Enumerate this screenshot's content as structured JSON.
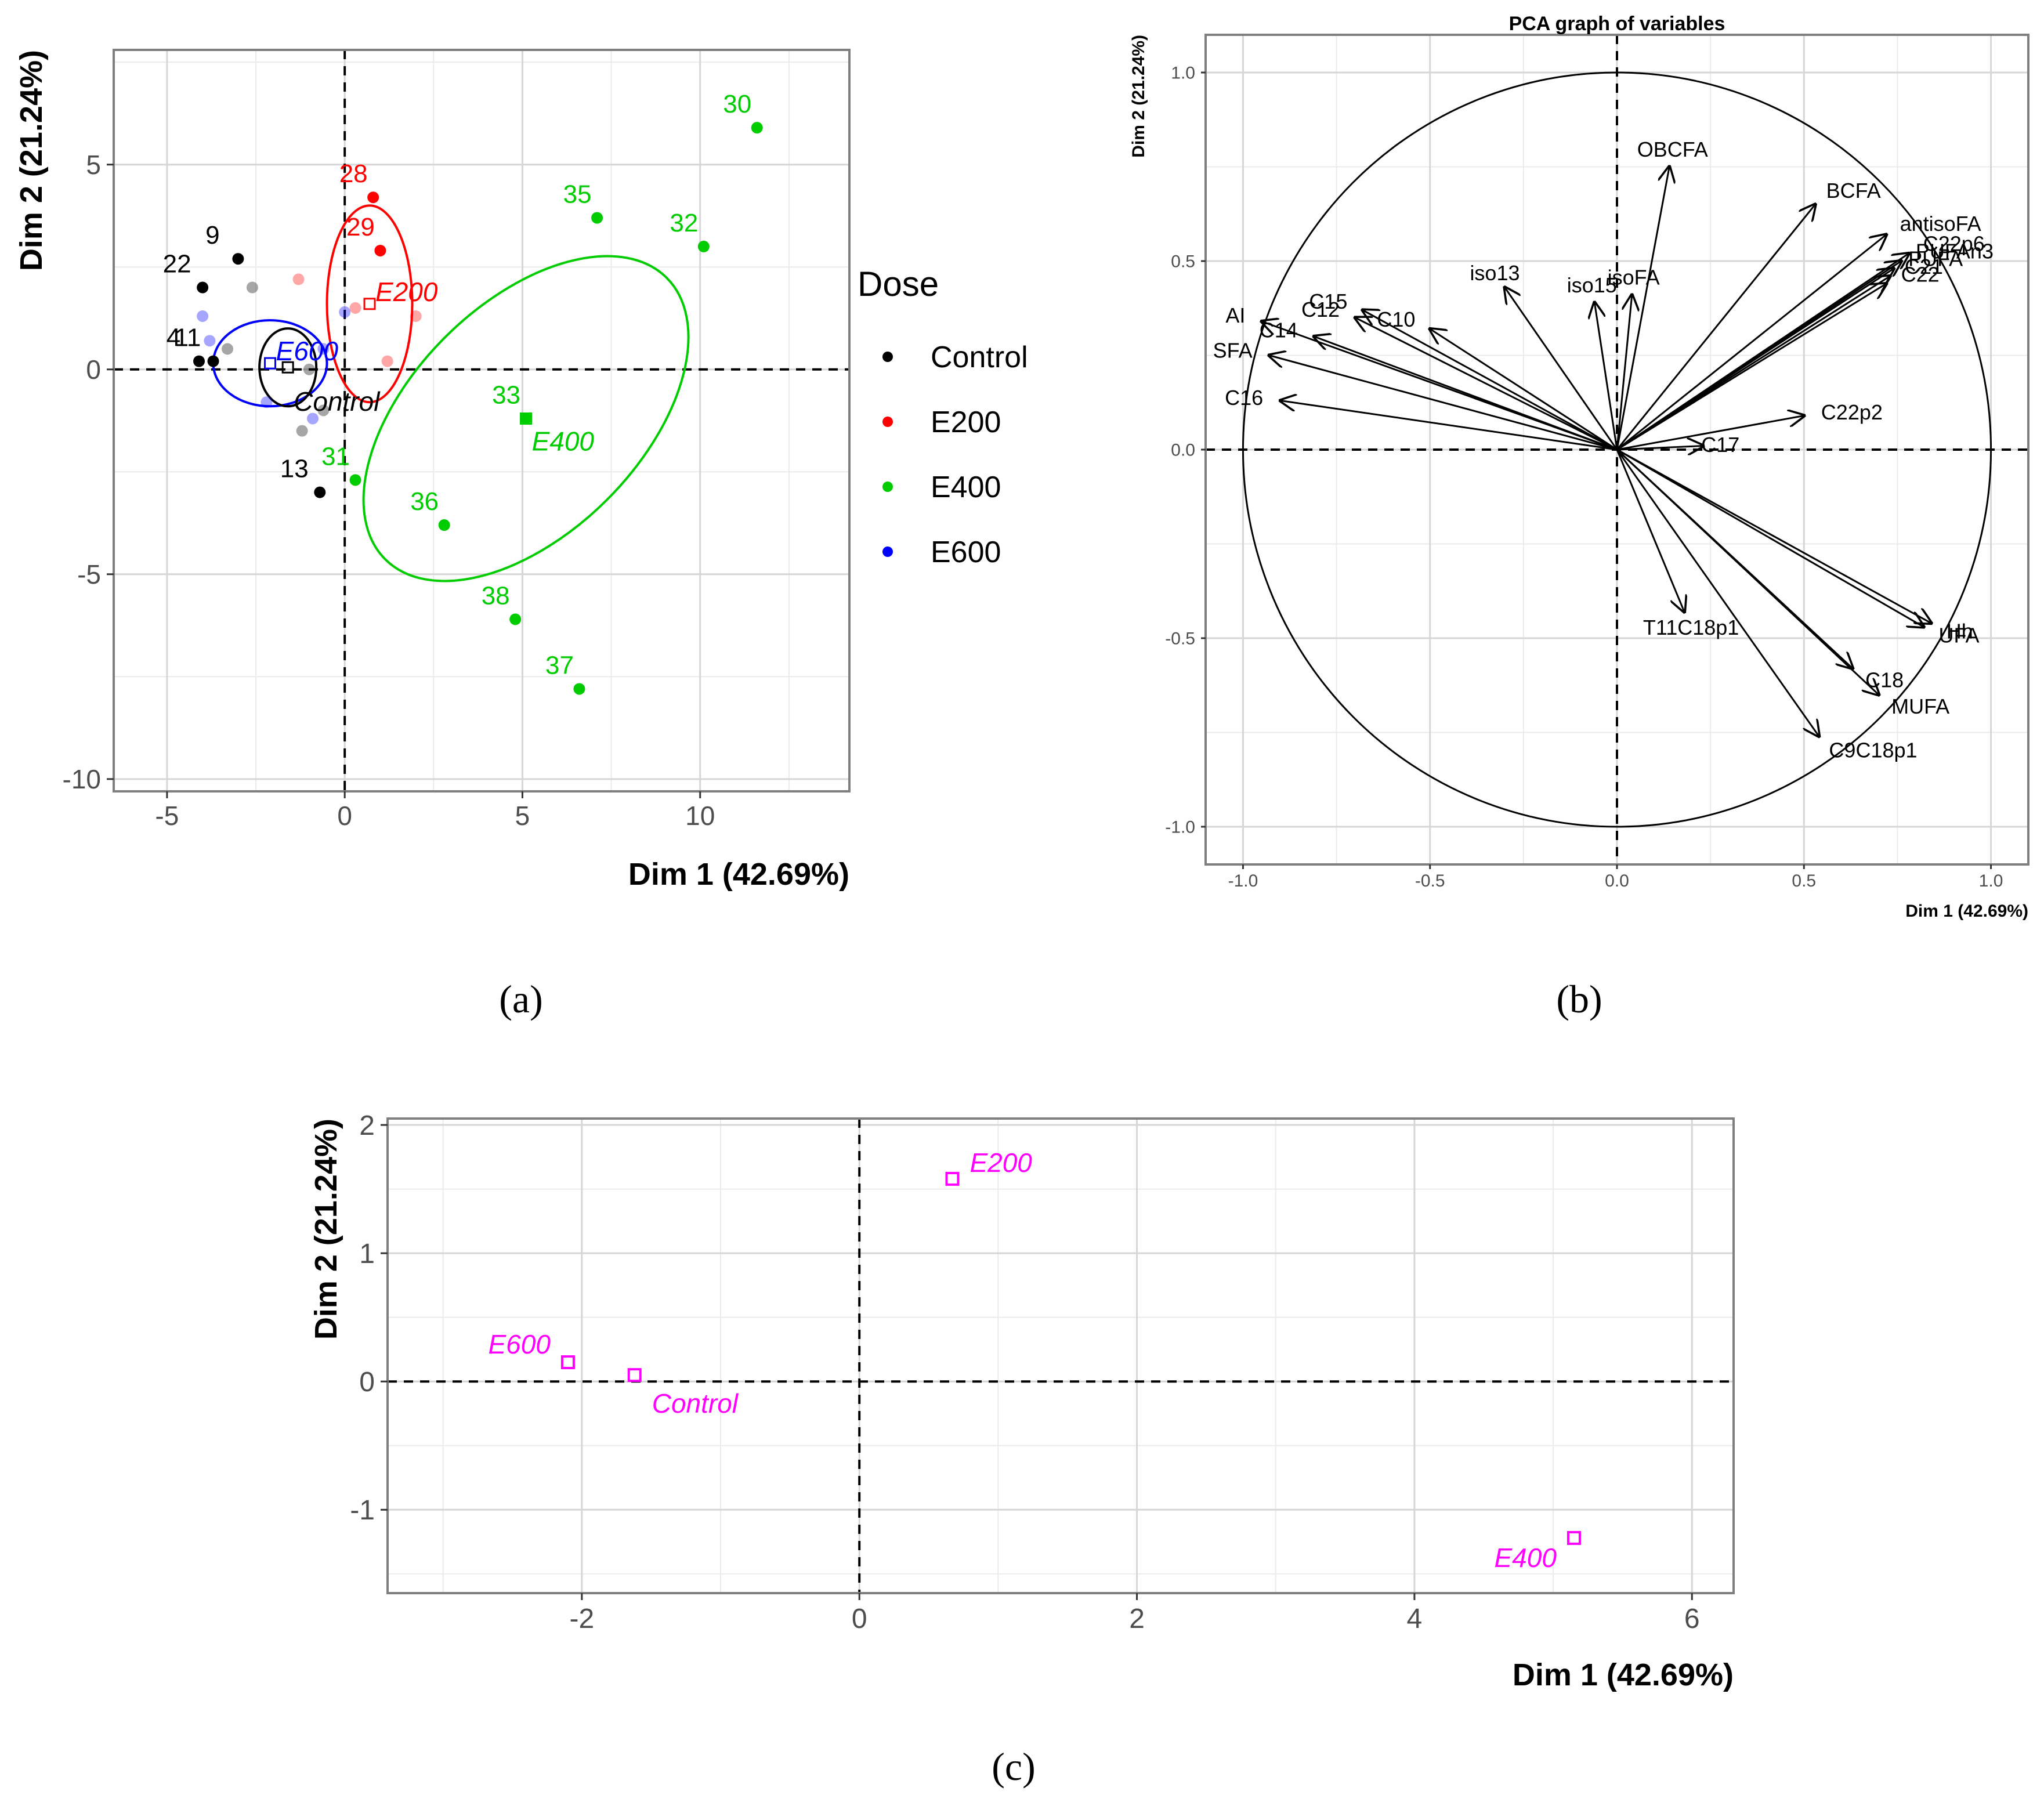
{
  "colors": {
    "control": "#000000",
    "e200": "#ff0000",
    "e400": "#00cc00",
    "e600": "#0000ff",
    "centroid_c": "#ff00ff",
    "grid": "#d6d6d6",
    "panel_border": "#7f7f7f"
  },
  "panel_labels": [
    "(a)",
    "(b)",
    "(c)"
  ],
  "chart_data": [
    {
      "type": "scatter",
      "id": "a",
      "title": "",
      "xlabel": "Dim 1 (42.69%)",
      "ylabel": "Dim 2 (21.24%)",
      "xlim": [
        -6.5,
        14.2
      ],
      "ylim": [
        -10.3,
        7.8
      ],
      "xticks": [
        -5,
        0,
        5,
        10
      ],
      "yticks": [
        -10,
        -5,
        0,
        5
      ],
      "grid": true,
      "legend_title": "Dose",
      "legend_position": "right",
      "series": [
        {
          "name": "Control",
          "color_key": "control",
          "points": [
            {
              "x": -4.1,
              "y": 0.2,
              "label": "4"
            },
            {
              "x": -4.0,
              "y": 2.0,
              "label": "22"
            },
            {
              "x": -3.0,
              "y": 2.7,
              "label": "9"
            },
            {
              "x": -0.7,
              "y": -3.0,
              "label": "13"
            },
            {
              "x": -3.7,
              "y": 0.2,
              "label": "11"
            },
            {
              "x": -2.6,
              "y": 2.0,
              "label": ""
            },
            {
              "x": -3.3,
              "y": 0.5,
              "label": ""
            },
            {
              "x": -1.2,
              "y": -1.5,
              "label": ""
            },
            {
              "x": -0.6,
              "y": -1.0,
              "label": ""
            },
            {
              "x": -1.0,
              "y": 0.0,
              "label": ""
            }
          ]
        },
        {
          "name": "E200",
          "color_key": "e200",
          "points": [
            {
              "x": 0.8,
              "y": 4.2,
              "label": "28"
            },
            {
              "x": 1.0,
              "y": 2.9,
              "label": "29"
            },
            {
              "x": -1.3,
              "y": 2.2,
              "label": ""
            },
            {
              "x": 2.0,
              "y": 1.3,
              "label": ""
            },
            {
              "x": 1.2,
              "y": 0.2,
              "label": ""
            },
            {
              "x": 0.3,
              "y": 1.5,
              "label": ""
            }
          ]
        },
        {
          "name": "E400",
          "color_key": "e400",
          "points": [
            {
              "x": 11.6,
              "y": 5.9,
              "label": "30"
            },
            {
              "x": 10.1,
              "y": 3.0,
              "label": "32"
            },
            {
              "x": 7.1,
              "y": 3.7,
              "label": "35"
            },
            {
              "x": 5.1,
              "y": -1.2,
              "label": "33"
            },
            {
              "x": 0.3,
              "y": -2.7,
              "label": "31"
            },
            {
              "x": 2.8,
              "y": -3.8,
              "label": "36"
            },
            {
              "x": 4.8,
              "y": -6.1,
              "label": "38"
            },
            {
              "x": 6.6,
              "y": -7.8,
              "label": "37"
            }
          ]
        },
        {
          "name": "E600",
          "color_key": "e600",
          "points": [
            {
              "x": -4.0,
              "y": 1.3,
              "label": ""
            },
            {
              "x": -3.8,
              "y": 0.7,
              "label": ""
            },
            {
              "x": -2.2,
              "y": -0.8,
              "label": ""
            },
            {
              "x": -0.9,
              "y": -1.2,
              "label": ""
            },
            {
              "x": 0.0,
              "y": 1.4,
              "label": ""
            },
            {
              "x": -0.6,
              "y": 0.5,
              "label": ""
            }
          ]
        }
      ],
      "centroids": [
        {
          "group": "Control",
          "x": -1.6,
          "y": 0.05,
          "label": "Control"
        },
        {
          "group": "E200",
          "x": 0.7,
          "y": 1.6,
          "label": "E200"
        },
        {
          "group": "E400",
          "x": 5.1,
          "y": -1.2,
          "label": "E400"
        },
        {
          "group": "E600",
          "x": -2.1,
          "y": 0.15,
          "label": "E600"
        }
      ],
      "ellipses": [
        {
          "group": "E200",
          "cx": 0.7,
          "cy": 1.6,
          "rx": 1.2,
          "ry": 2.4,
          "angle": 0
        },
        {
          "group": "E400",
          "cx": 5.1,
          "cy": -1.2,
          "rx": 5.6,
          "ry": 2.8,
          "angle": -45
        },
        {
          "group": "E600",
          "cx": -2.1,
          "cy": 0.15,
          "rx": 1.6,
          "ry": 1.05,
          "angle": 0
        },
        {
          "group": "Control",
          "cx": -1.6,
          "cy": 0.05,
          "rx": 0.8,
          "ry": 0.95,
          "angle": 0
        }
      ]
    },
    {
      "type": "pca_variables",
      "id": "b",
      "title": "PCA graph of variables",
      "xlabel": "Dim 1 (42.69%)",
      "ylabel": "Dim 2 (21.24%)",
      "xlim": [
        -1.1,
        1.1
      ],
      "ylim": [
        -1.1,
        1.1
      ],
      "xticks": [
        -1.0,
        -0.5,
        0.0,
        0.5,
        1.0
      ],
      "yticks": [
        -1.0,
        -0.5,
        0.0,
        0.5,
        1.0
      ],
      "xtick_labels": [
        "-1.0",
        "-0.5",
        "0.0",
        "0.5",
        "1.0"
      ],
      "ytick_labels": [
        "-1.0",
        "-0.5",
        "0.0",
        "0.5",
        "1.0"
      ],
      "grid": true,
      "unit_circle": true,
      "vectors": [
        {
          "name": "OBCFA",
          "x": 0.14,
          "y": 0.75
        },
        {
          "name": "BCFA",
          "x": 0.53,
          "y": 0.65
        },
        {
          "name": "antisoFA",
          "x": 0.72,
          "y": 0.57
        },
        {
          "name": "C22p6",
          "x": 0.78,
          "y": 0.52
        },
        {
          "name": "PUFAn3",
          "x": 0.76,
          "y": 0.5
        },
        {
          "name": "PUFA",
          "x": 0.74,
          "y": 0.48
        },
        {
          "name": "C21",
          "x": 0.73,
          "y": 0.46
        },
        {
          "name": "C22",
          "x": 0.72,
          "y": 0.44
        },
        {
          "name": "isoFA",
          "x": 0.04,
          "y": 0.41
        },
        {
          "name": "iso15",
          "x": -0.06,
          "y": 0.39
        },
        {
          "name": "iso13",
          "x": -0.3,
          "y": 0.43
        },
        {
          "name": "C15",
          "x": -0.68,
          "y": 0.37
        },
        {
          "name": "C12",
          "x": -0.7,
          "y": 0.35
        },
        {
          "name": "C10",
          "x": -0.5,
          "y": 0.32
        },
        {
          "name": "C14",
          "x": -0.81,
          "y": 0.3
        },
        {
          "name": "AI",
          "x": -0.95,
          "y": 0.34
        },
        {
          "name": "SFA",
          "x": -0.93,
          "y": 0.25
        },
        {
          "name": "C16",
          "x": -0.9,
          "y": 0.13
        },
        {
          "name": "C22p2",
          "x": 0.5,
          "y": 0.09
        },
        {
          "name": "C17",
          "x": 0.23,
          "y": 0.01
        },
        {
          "name": "Hh",
          "x": 0.84,
          "y": -0.46
        },
        {
          "name": "UFA",
          "x": 0.82,
          "y": -0.47
        },
        {
          "name": "C18",
          "x": 0.63,
          "y": -0.58
        },
        {
          "name": "MUFA",
          "x": 0.7,
          "y": -0.65
        },
        {
          "name": "C9C18p1",
          "x": 0.54,
          "y": -0.76
        },
        {
          "name": "T11C18p1",
          "x": 0.18,
          "y": -0.43
        }
      ]
    },
    {
      "type": "scatter",
      "id": "c",
      "title": "",
      "xlabel": "Dim 1 (42.69%)",
      "ylabel": "Dim 2 (21.24%)",
      "xlim": [
        -3.4,
        6.3
      ],
      "ylim": [
        -1.65,
        2.05
      ],
      "xticks": [
        -2,
        0,
        2,
        4,
        6
      ],
      "yticks": [
        -1,
        0,
        1,
        2
      ],
      "grid": true,
      "points": [
        {
          "x": 0.67,
          "y": 1.58,
          "label": "E200"
        },
        {
          "x": -2.1,
          "y": 0.15,
          "label": "E600"
        },
        {
          "x": -1.62,
          "y": 0.05,
          "label": "Control"
        },
        {
          "x": 5.15,
          "y": -1.22,
          "label": "E400"
        }
      ]
    }
  ]
}
